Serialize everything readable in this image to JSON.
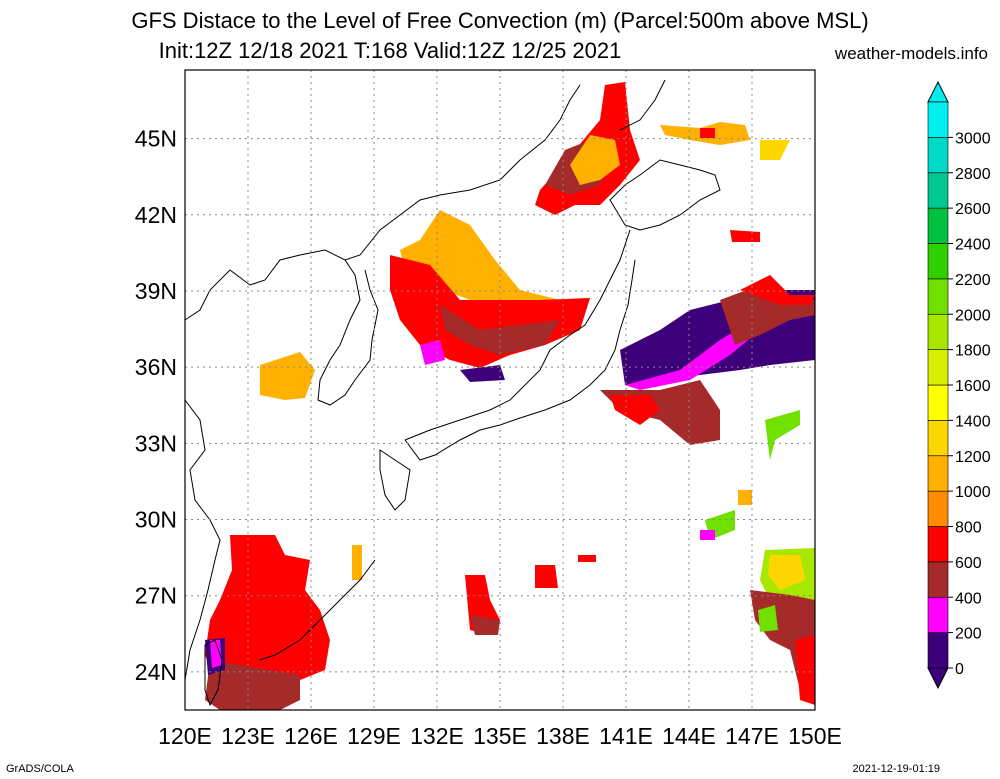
{
  "title": {
    "line1": "GFS Distace to the Level of Free Convection (m) (Parcel:500m above MSL)",
    "line2": "Init:12Z 12/18 2021 T:168 Valid:12Z 12/25 2021",
    "site": "weather-models.info"
  },
  "axes": {
    "lon_range": [
      120,
      150
    ],
    "lat_range": [
      22.5,
      47.7
    ],
    "lon_ticks": [
      "120E",
      "123E",
      "126E",
      "129E",
      "132E",
      "135E",
      "138E",
      "141E",
      "144E",
      "147E",
      "150E"
    ],
    "lat_ticks": [
      "24N",
      "27N",
      "30N",
      "33N",
      "36N",
      "39N",
      "42N",
      "45N"
    ],
    "grid": true
  },
  "colorbar": {
    "levels": [
      "0",
      "200",
      "400",
      "600",
      "800",
      "1000",
      "1200",
      "1400",
      "1600",
      "1800",
      "2000",
      "2200",
      "2400",
      "2600",
      "2800",
      "3000"
    ],
    "colors": [
      "#3d007a",
      "#ff00ff",
      "#a52a2a",
      "#ff0000",
      "#ff8c00",
      "#ffb000",
      "#ffd700",
      "#ffff00",
      "#d8f000",
      "#a8e800",
      "#70e000",
      "#30d000",
      "#00c040",
      "#00c890",
      "#00d8c8",
      "#00f0f0"
    ]
  },
  "footer": {
    "left": "GrADS/COLA",
    "right": "2021-12-19-01:19"
  }
}
